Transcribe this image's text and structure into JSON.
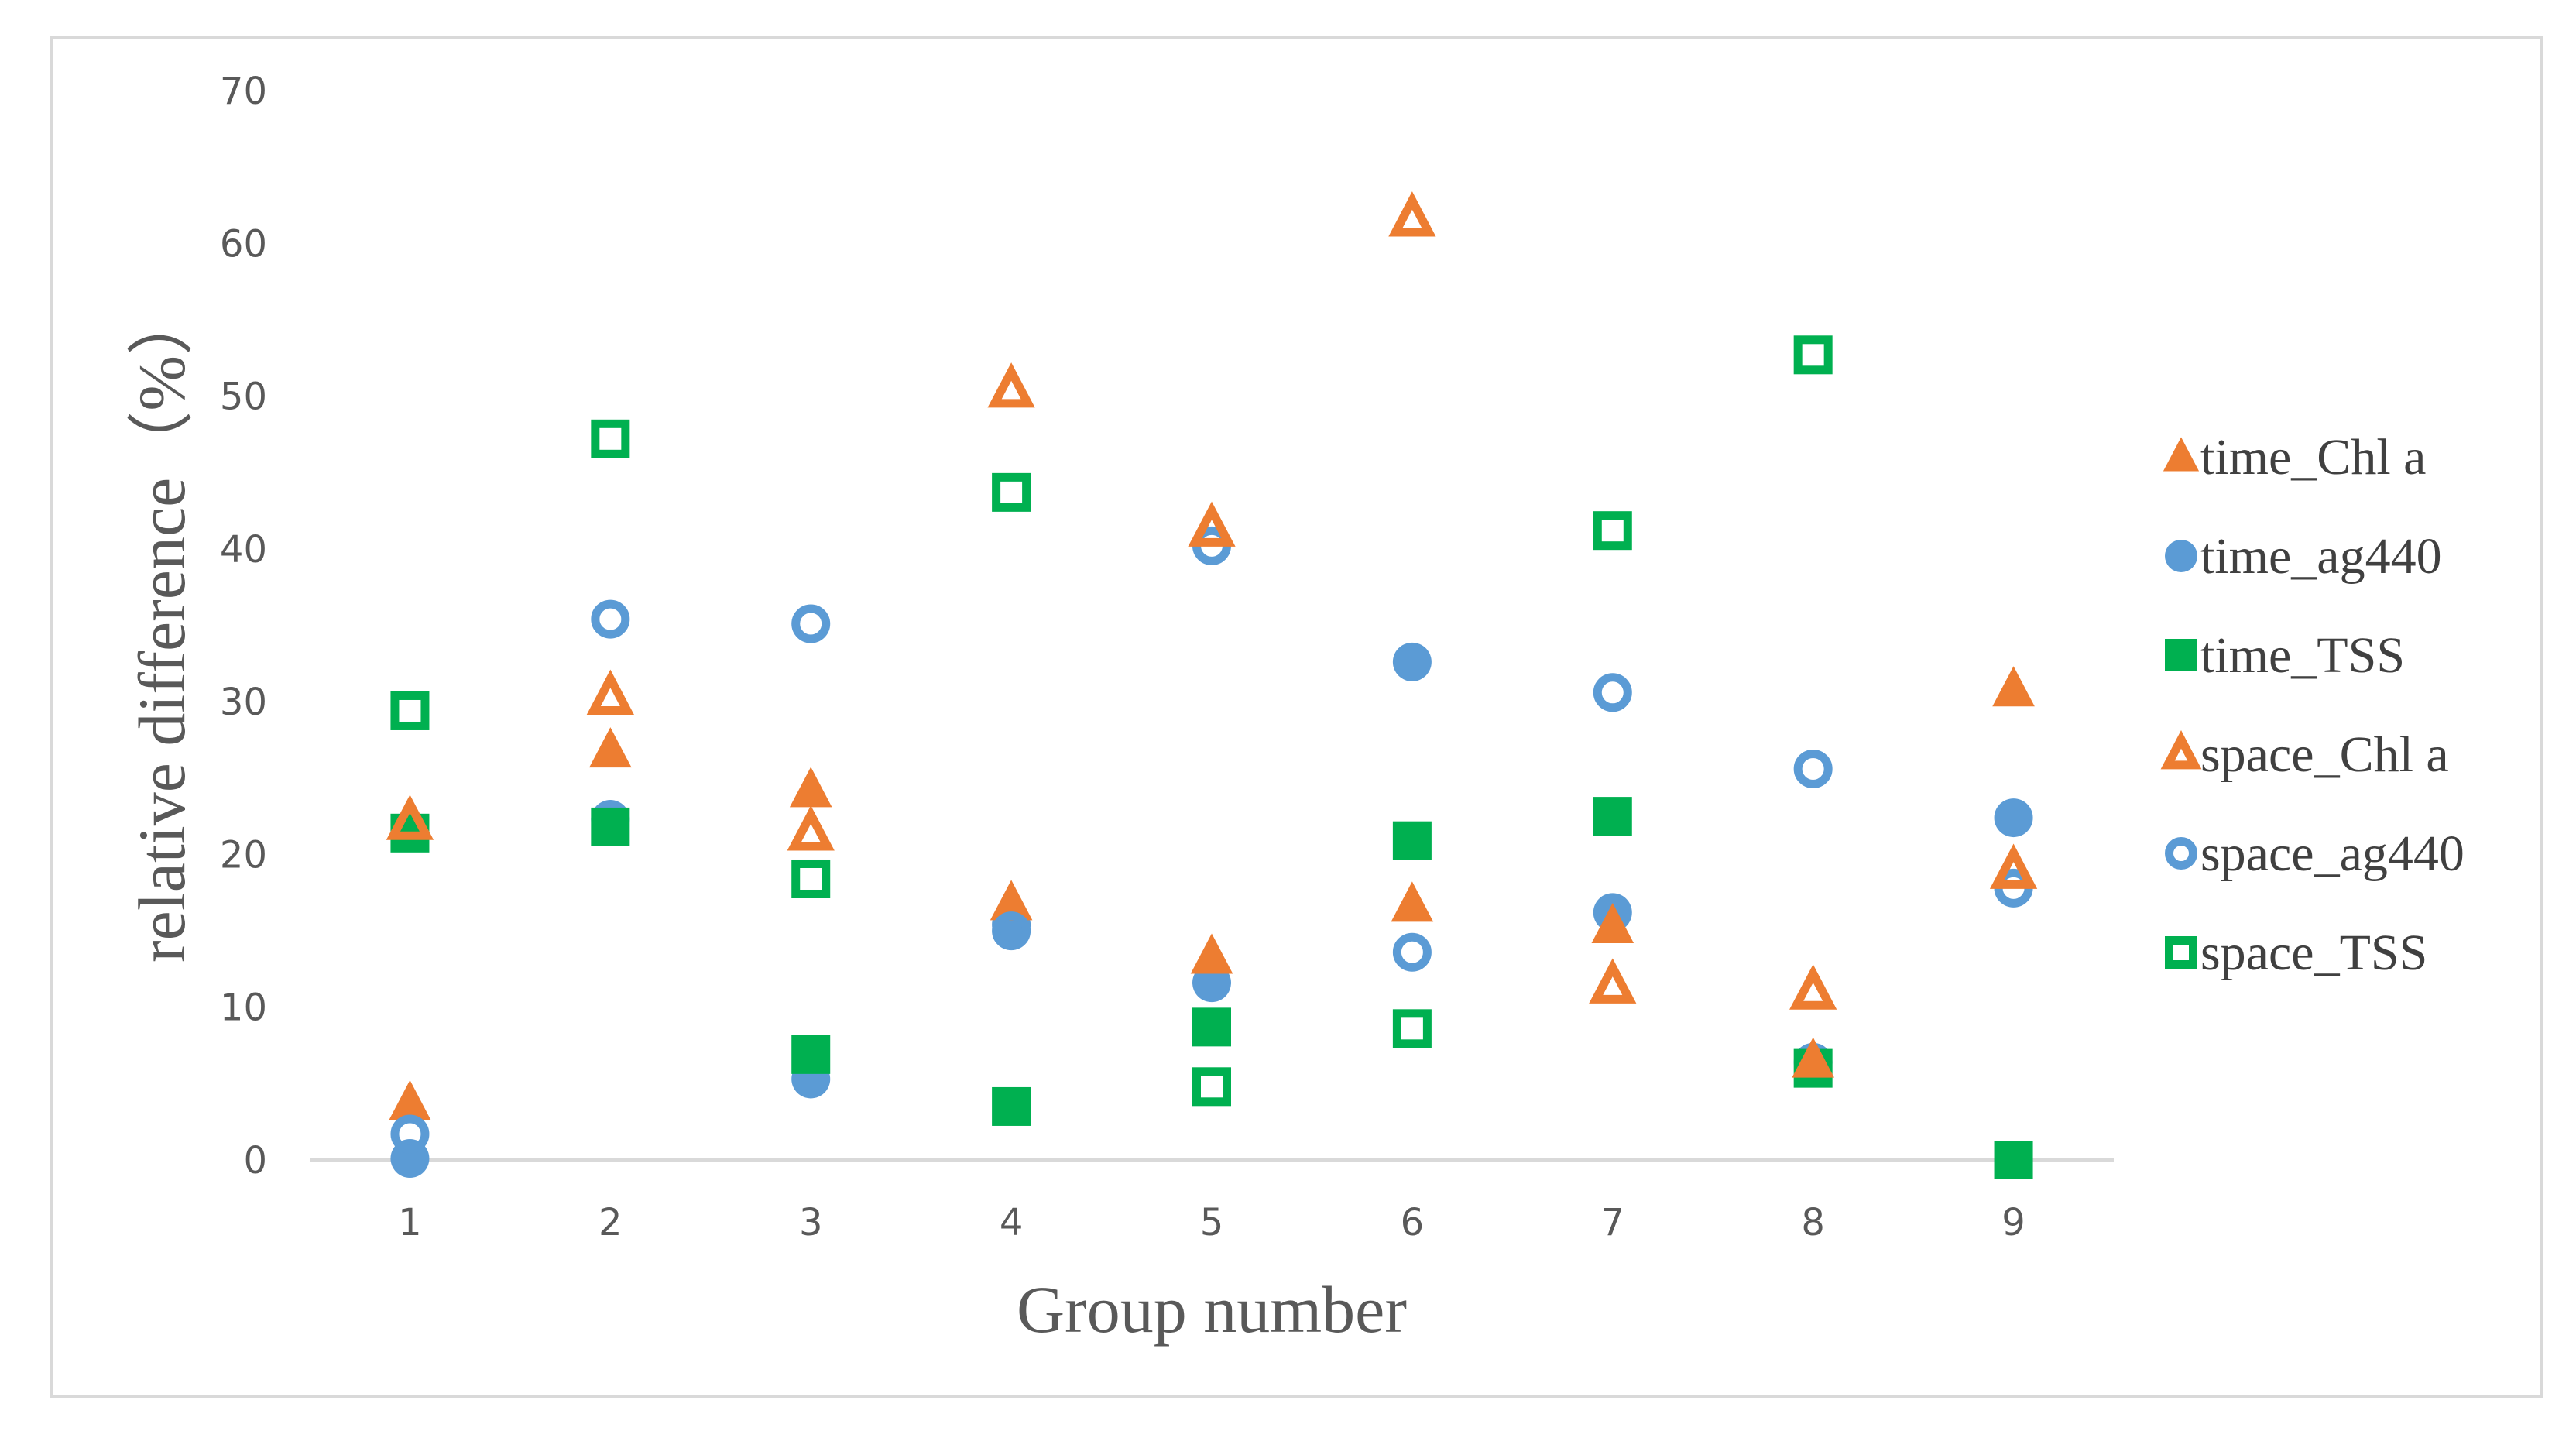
{
  "chart_data": {
    "type": "scatter",
    "title": "",
    "xlabel": "Group number",
    "ylabel": "relative difference（%）",
    "x_ticks": [
      1,
      2,
      3,
      4,
      5,
      6,
      7,
      8,
      9
    ],
    "y_ticks": [
      0,
      10,
      20,
      30,
      40,
      50,
      60,
      70
    ],
    "xlim": [
      0.5,
      9.5
    ],
    "ylim": [
      0,
      70
    ],
    "grid": false,
    "legend_position": "right",
    "series": [
      {
        "name": "time_Chl a",
        "marker": "triangle",
        "filled": true,
        "color": "#ED7D31",
        "x": [
          1,
          2,
          3,
          4,
          5,
          6,
          7,
          8,
          9
        ],
        "y": [
          3.7,
          26.8,
          24.2,
          16.8,
          13.3,
          16.7,
          15.3,
          6.5,
          30.8
        ]
      },
      {
        "name": "time_ag440",
        "marker": "circle",
        "filled": true,
        "color": "#5B9BD5",
        "x": [
          1,
          2,
          3,
          4,
          5,
          6,
          7,
          8,
          9
        ],
        "y": [
          0.1,
          22.3,
          5.3,
          15.4,
          11.6,
          32.6,
          16.2,
          6.4,
          22.4
        ]
      },
      {
        "name": "time_TSS",
        "marker": "square",
        "filled": true,
        "color": "#00B050",
        "x": [
          1,
          2,
          3,
          4,
          5,
          6,
          7,
          8,
          9
        ],
        "y": [
          21.4,
          21.8,
          6.9,
          3.5,
          8.7,
          20.9,
          22.5,
          6.0,
          0
        ]
      },
      {
        "name": "space_Chl a",
        "marker": "triangle",
        "filled": false,
        "color": "#ED7D31",
        "x": [
          1,
          2,
          3,
          4,
          5,
          6,
          7,
          8,
          9
        ],
        "y": [
          22.1,
          30.3,
          21.4,
          50.4,
          41.3,
          61.6,
          11.4,
          11.0,
          18.9
        ]
      },
      {
        "name": "space_ag440",
        "marker": "circle",
        "filled": false,
        "color": "#5B9BD5",
        "x": [
          1,
          2,
          3,
          4,
          5,
          6,
          7,
          8,
          9
        ],
        "y": [
          1.7,
          35.4,
          35.1,
          15.0,
          40.2,
          13.6,
          30.6,
          25.6,
          17.8
        ]
      },
      {
        "name": "space_TSS",
        "marker": "square",
        "filled": false,
        "color": "#00B050",
        "x": [
          1,
          2,
          3,
          4,
          5,
          6,
          7,
          8,
          9
        ],
        "y": [
          29.4,
          47.2,
          18.4,
          43.7,
          4.8,
          8.6,
          41.2,
          52.7,
          null
        ]
      }
    ]
  }
}
